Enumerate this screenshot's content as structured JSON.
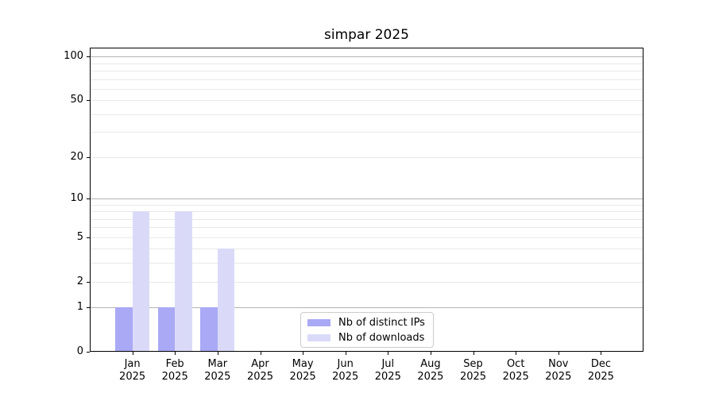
{
  "title": "simpar 2025",
  "chart_data": {
    "type": "bar",
    "categories": [
      "Jan",
      "Feb",
      "Mar",
      "Apr",
      "May",
      "Jun",
      "Jul",
      "Aug",
      "Sep",
      "Oct",
      "Nov",
      "Dec"
    ],
    "year_label": "2025",
    "series": [
      {
        "name": "Nb of distinct IPs",
        "color": "#a9a9f5",
        "values": [
          1,
          1,
          1,
          0,
          0,
          0,
          0,
          0,
          0,
          0,
          0,
          0
        ]
      },
      {
        "name": "Nb of downloads",
        "color": "#dadaf8",
        "values": [
          8,
          8,
          4,
          0,
          0,
          0,
          0,
          0,
          0,
          0,
          0,
          0
        ]
      }
    ],
    "title": "simpar 2025",
    "xlabel": "",
    "ylabel": "",
    "yscale": "log1p",
    "ylim": [
      0,
      115
    ],
    "yticks": [
      0,
      1,
      2,
      5,
      10,
      20,
      50,
      100
    ],
    "grid": {
      "on": true,
      "major_values": [
        1,
        10,
        100
      ],
      "minor_values": [
        2,
        3,
        4,
        5,
        6,
        7,
        8,
        9,
        20,
        30,
        40,
        50,
        60,
        70,
        80,
        90
      ]
    },
    "legend_position": "inside lower center",
    "colors": {
      "major_grid": "#b3b3b3",
      "minor_grid": "#e9e9e9",
      "spine": "#000000",
      "text": "#000000",
      "background": "#ffffff"
    }
  }
}
